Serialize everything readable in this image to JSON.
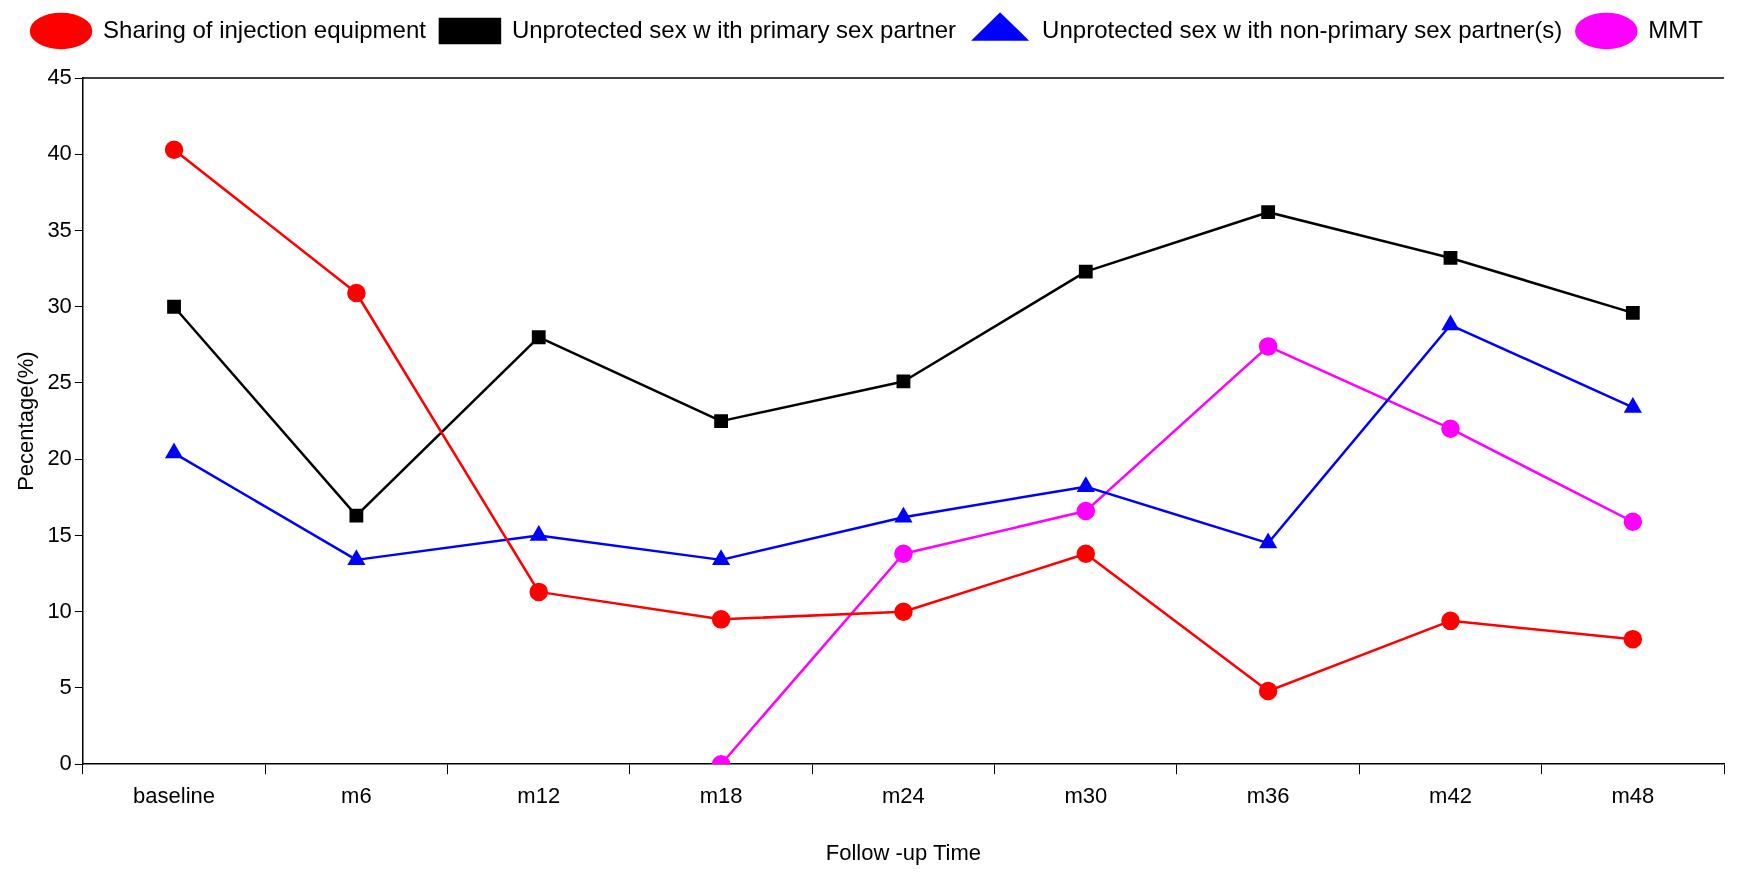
{
  "chart_data": {
    "type": "line",
    "xlabel": "Follow -up Time",
    "ylabel": "Pecentage(%)",
    "categories": [
      "baseline",
      "m6",
      "m12",
      "m18",
      "m24",
      "m30",
      "m36",
      "m42",
      "m48"
    ],
    "series": [
      {
        "name": "Sharing of injection equipment",
        "color": "#ff0000",
        "marker": "circle",
        "values": [
          40.3,
          30.9,
          11.3,
          9.5,
          10.0,
          13.8,
          4.8,
          9.4,
          8.2
        ]
      },
      {
        "name": "Unprotected sex w ith primary sex partner",
        "color": "#000000",
        "marker": "square",
        "values": [
          30.0,
          16.3,
          28.0,
          22.5,
          25.1,
          32.3,
          36.2,
          33.2,
          29.6
        ]
      },
      {
        "name": "Unprotected sex w ith non-primary sex partner(s)",
        "color": "#0000ff",
        "marker": "triangle",
        "values": [
          20.4,
          13.4,
          15.0,
          13.4,
          16.2,
          18.2,
          14.5,
          28.8,
          23.4
        ]
      },
      {
        "name": "MMT",
        "color": "#ff00ff",
        "marker": "circle",
        "values": [
          null,
          null,
          null,
          0,
          13.8,
          16.6,
          27.4,
          22.0,
          15.9
        ]
      }
    ],
    "ylim": [
      0,
      45
    ],
    "yticks": [
      0,
      5,
      10,
      15,
      20,
      25,
      30,
      35,
      40,
      45
    ],
    "grid": false,
    "legend": "top",
    "line_style": "solid"
  }
}
